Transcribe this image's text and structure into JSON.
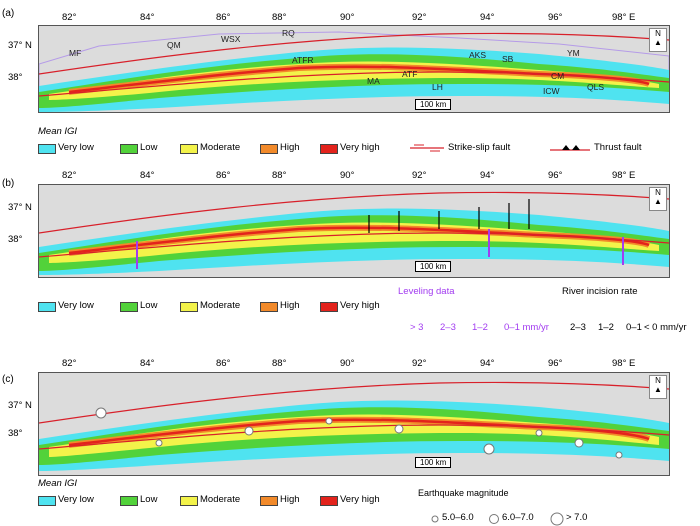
{
  "ticks_x": [
    "82°",
    "84°",
    "86°",
    "88°",
    "90°",
    "92°",
    "94°",
    "96°",
    "98° E"
  ],
  "ticks_y": [
    "37° N",
    "38°"
  ],
  "scale_bar": "100 km",
  "north_label": "N",
  "legend_title": "Mean IGI",
  "igi_classes": [
    {
      "label": "Very low",
      "color": "#4fe3f0"
    },
    {
      "label": "Low",
      "color": "#52d23a"
    },
    {
      "label": "Moderate",
      "color": "#f3f34a"
    },
    {
      "label": "High",
      "color": "#f28a2a"
    },
    {
      "label": "Very high",
      "color": "#e3231c"
    }
  ],
  "panel_a": {
    "label": "(a)",
    "places": [
      "MF",
      "QM",
      "WSX",
      "RQ",
      "ATFR",
      "MA",
      "ATF",
      "LH",
      "AKS",
      "SB",
      "YM",
      "CM",
      "ICW",
      "QLS"
    ],
    "strike_slip_label": "Strike-slip fault",
    "thrust_label": "Thrust fault"
  },
  "panel_b": {
    "label": "(b)",
    "leveling_title": "Leveling data",
    "leveling_classes": [
      "> 3",
      "2–3",
      "1–2",
      "0–1 mm/yr"
    ],
    "incision_title": "River incision rate",
    "incision_classes": [
      "2–3",
      "1–2",
      "0–1",
      "< 0 mm/yr"
    ]
  },
  "panel_c": {
    "label": "(c)",
    "quake_title": "Earthquake magnitude",
    "quake_classes": [
      "5.0–6.0",
      "6.0–7.0",
      "> 7.0"
    ]
  }
}
